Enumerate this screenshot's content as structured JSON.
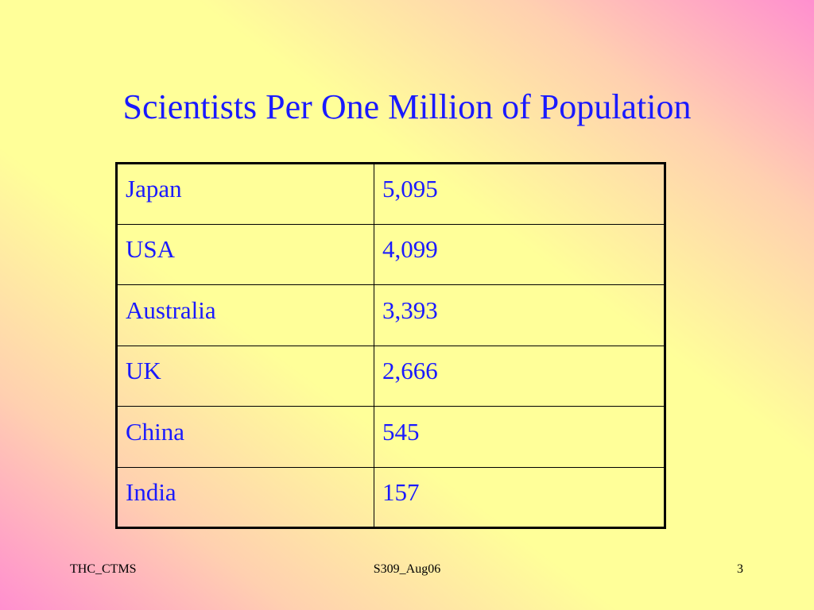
{
  "header": {
    "title": "Scientists Per One Million of Population"
  },
  "table": {
    "rows": [
      [
        "Japan",
        "5,095"
      ],
      [
        "USA",
        "4,099"
      ],
      [
        "Australia",
        "3,393"
      ],
      [
        "UK",
        "2,666"
      ],
      [
        "China",
        "545"
      ],
      [
        "India",
        "157"
      ]
    ]
  },
  "footer": {
    "left": "THC_CTMS",
    "center": "S309_Aug06",
    "right": "3"
  }
}
